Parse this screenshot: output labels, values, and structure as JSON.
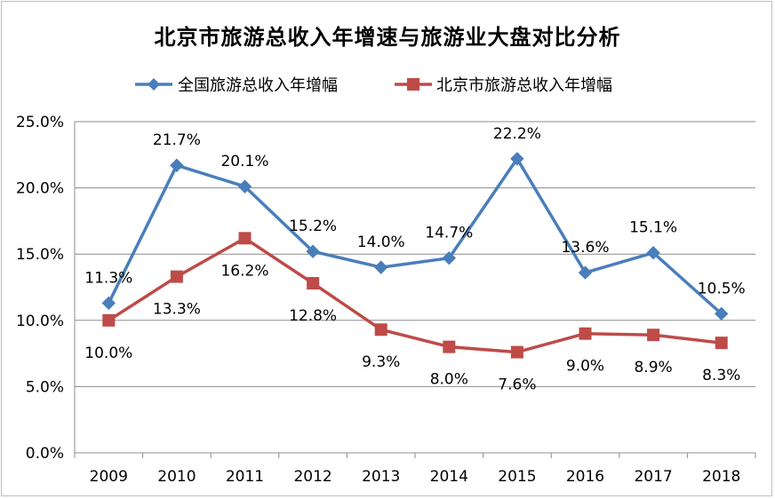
{
  "chart_data": {
    "type": "line",
    "title": "北京市旅游总收入年增速与旅游业大盘对比分析",
    "xlabel": "",
    "ylabel": "",
    "categories": [
      "2009",
      "2010",
      "2011",
      "2012",
      "2013",
      "2014",
      "2015",
      "2016",
      "2017",
      "2018"
    ],
    "ylim": [
      0,
      25
    ],
    "yticks": [
      "0.0%",
      "5.0%",
      "10.0%",
      "15.0%",
      "20.0%",
      "25.0%"
    ],
    "ytick_values": [
      0,
      5,
      10,
      15,
      20,
      25
    ],
    "grid": true,
    "legend": "top",
    "series": [
      {
        "name": "全国旅游总收入年增幅",
        "color": "#4a7ebb",
        "marker": "diamond",
        "values": [
          11.3,
          21.7,
          20.1,
          15.2,
          14.0,
          14.7,
          22.2,
          13.6,
          15.1,
          10.5
        ],
        "labels": [
          "11.3%",
          "21.7%",
          "20.1%",
          "15.2%",
          "14.0%",
          "14.7%",
          "22.2%",
          "13.6%",
          "15.1%",
          "10.5%"
        ],
        "label_position": "above"
      },
      {
        "name": "北京市旅游总收入年增幅",
        "color": "#be4b48",
        "marker": "square",
        "values": [
          10.0,
          13.3,
          16.2,
          12.8,
          9.3,
          8.0,
          7.6,
          9.0,
          8.9,
          8.3
        ],
        "labels": [
          "10.0%",
          "13.3%",
          "16.2%",
          "12.8%",
          "9.3%",
          "8.0%",
          "7.6%",
          "9.0%",
          "8.9%",
          "8.3%"
        ],
        "label_position": "below"
      }
    ]
  }
}
